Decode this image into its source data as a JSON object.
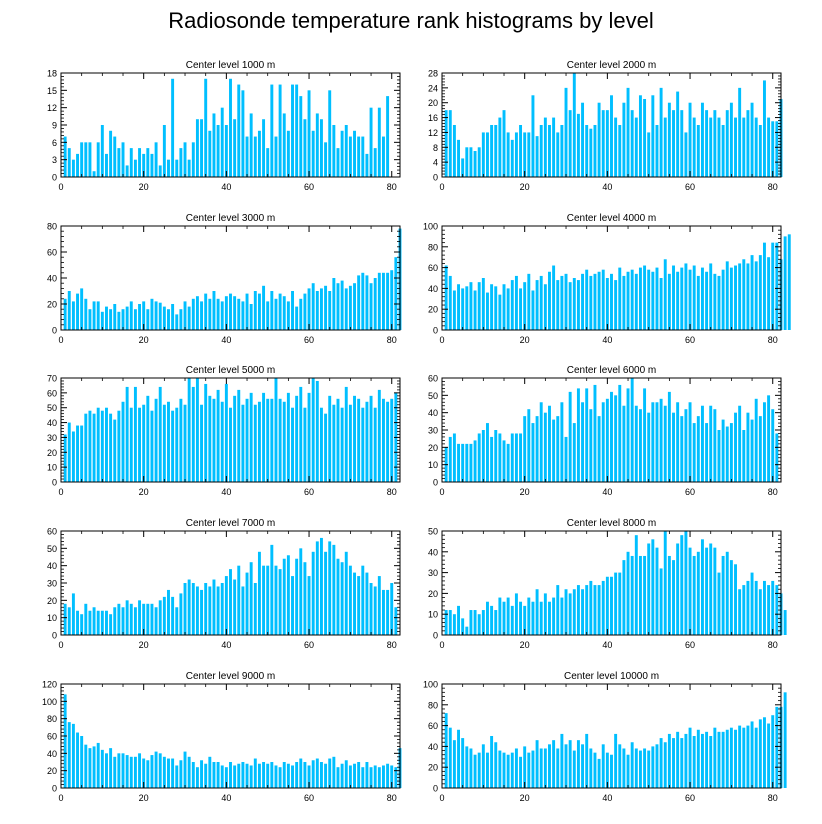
{
  "title": "Radiosonde temperature rank histograms by level",
  "bar_color": "#00bfff",
  "chart_data": [
    {
      "type": "bar",
      "title": "Center level 1000 m",
      "xlim": [
        0,
        82
      ],
      "xticks": [
        0,
        20,
        40,
        60,
        80
      ],
      "ylim": [
        0,
        18
      ],
      "yticks": [
        0,
        3,
        6,
        9,
        12,
        15,
        18
      ],
      "values": [
        7,
        5,
        3,
        4,
        6,
        6,
        6,
        1,
        6,
        9,
        4,
        8,
        7,
        5,
        6,
        2,
        5,
        3,
        5,
        4,
        5,
        4,
        6,
        2,
        9,
        3,
        17,
        3,
        5,
        6,
        3,
        6,
        10,
        10,
        17,
        8,
        11,
        9,
        12,
        9,
        17,
        10,
        16,
        15,
        7,
        11,
        7,
        8,
        10,
        5,
        16,
        7,
        16,
        11,
        8,
        16,
        16,
        14,
        10,
        15,
        8,
        11,
        10,
        6,
        15,
        9,
        5,
        8,
        9,
        7,
        8,
        7,
        7,
        4,
        12,
        5,
        12,
        7,
        14
      ]
    },
    {
      "type": "bar",
      "title": "Center level 2000 m",
      "xlim": [
        0,
        82
      ],
      "xticks": [
        0,
        20,
        40,
        60,
        80
      ],
      "ylim": [
        0,
        28
      ],
      "yticks": [
        0,
        4,
        8,
        12,
        16,
        20,
        24,
        28
      ],
      "values": [
        18,
        18,
        14,
        10,
        5,
        8,
        8,
        7,
        8,
        12,
        12,
        14,
        14,
        16,
        18,
        12,
        10,
        12,
        14,
        12,
        12,
        22,
        11,
        14,
        16,
        14,
        16,
        12,
        14,
        24,
        18,
        28,
        17,
        20,
        14,
        13,
        14,
        20,
        18,
        18,
        22,
        16,
        14,
        20,
        24,
        18,
        16,
        22,
        21,
        12,
        22,
        14,
        24,
        16,
        20,
        18,
        23,
        18,
        12,
        20,
        16,
        14,
        20,
        18,
        16,
        18,
        16,
        14,
        18,
        20,
        16,
        24,
        16,
        18,
        20,
        16,
        14,
        26,
        16,
        15,
        15,
        21
      ]
    },
    {
      "type": "bar",
      "title": "Center level 3000 m",
      "xlim": [
        0,
        82
      ],
      "xticks": [
        0,
        20,
        40,
        60,
        80
      ],
      "ylim": [
        0,
        80
      ],
      "yticks": [
        0,
        20,
        40,
        60,
        80
      ],
      "values": [
        24,
        30,
        22,
        28,
        32,
        24,
        16,
        22,
        22,
        14,
        18,
        16,
        20,
        14,
        16,
        18,
        22,
        16,
        20,
        22,
        16,
        24,
        22,
        21,
        18,
        16,
        20,
        12,
        16,
        22,
        18,
        24,
        26,
        22,
        28,
        24,
        30,
        24,
        22,
        26,
        28,
        26,
        24,
        22,
        28,
        20,
        30,
        28,
        34,
        22,
        30,
        24,
        28,
        26,
        22,
        30,
        18,
        24,
        28,
        32,
        36,
        30,
        32,
        34,
        30,
        40,
        36,
        38,
        32,
        34,
        36,
        42,
        44,
        42,
        36,
        40,
        44,
        44,
        44,
        46,
        56,
        78
      ]
    },
    {
      "type": "bar",
      "title": "Center level 4000 m",
      "xlim": [
        0,
        82
      ],
      "xticks": [
        0,
        20,
        40,
        60,
        80
      ],
      "ylim": [
        0,
        100
      ],
      "yticks": [
        0,
        20,
        40,
        60,
        80,
        100
      ],
      "values": [
        62,
        52,
        38,
        44,
        40,
        42,
        46,
        38,
        46,
        50,
        36,
        44,
        42,
        34,
        44,
        40,
        48,
        52,
        40,
        46,
        54,
        38,
        48,
        52,
        44,
        56,
        62,
        48,
        52,
        54,
        46,
        50,
        48,
        54,
        58,
        52,
        54,
        56,
        58,
        50,
        54,
        48,
        60,
        52,
        56,
        58,
        54,
        60,
        62,
        58,
        56,
        60,
        50,
        68,
        54,
        62,
        56,
        60,
        64,
        58,
        62,
        52,
        60,
        56,
        64,
        54,
        52,
        58,
        66,
        60,
        62,
        64,
        68,
        64,
        72,
        66,
        72,
        84,
        70,
        84,
        84,
        68,
        90,
        92
      ]
    },
    {
      "type": "bar",
      "title": "Center level 5000 m",
      "xlim": [
        0,
        82
      ],
      "xticks": [
        0,
        20,
        40,
        60,
        80
      ],
      "ylim": [
        0,
        70
      ],
      "yticks": [
        0,
        10,
        20,
        30,
        40,
        50,
        60,
        70
      ],
      "values": [
        32,
        40,
        34,
        38,
        38,
        46,
        48,
        46,
        50,
        48,
        50,
        46,
        42,
        48,
        54,
        64,
        50,
        64,
        50,
        52,
        58,
        48,
        56,
        64,
        52,
        54,
        48,
        50,
        56,
        52,
        70,
        64,
        70,
        52,
        66,
        58,
        56,
        62,
        54,
        66,
        50,
        58,
        62,
        52,
        56,
        60,
        52,
        54,
        60,
        56,
        56,
        70,
        56,
        54,
        60,
        50,
        58,
        64,
        50,
        60,
        70,
        68,
        50,
        46,
        58,
        52,
        56,
        50,
        64,
        52,
        58,
        56,
        50,
        54,
        58,
        50,
        62,
        56,
        54,
        56,
        60
      ]
    },
    {
      "type": "bar",
      "title": "Center level 6000 m",
      "xlim": [
        0,
        82
      ],
      "xticks": [
        0,
        20,
        40,
        60,
        80
      ],
      "ylim": [
        0,
        60
      ],
      "yticks": [
        0,
        10,
        20,
        30,
        40,
        50,
        60
      ],
      "values": [
        20,
        26,
        28,
        22,
        22,
        22,
        22,
        24,
        28,
        30,
        34,
        26,
        30,
        28,
        24,
        22,
        28,
        28,
        28,
        38,
        42,
        34,
        38,
        46,
        40,
        44,
        36,
        38,
        46,
        26,
        52,
        34,
        54,
        46,
        54,
        42,
        56,
        38,
        46,
        48,
        52,
        50,
        56,
        44,
        54,
        60,
        44,
        42,
        54,
        40,
        46,
        46,
        48,
        44,
        52,
        40,
        46,
        38,
        42,
        46,
        34,
        38,
        44,
        34,
        44,
        42,
        30,
        36,
        32,
        34,
        40,
        44,
        30,
        40,
        36,
        48,
        38,
        46,
        50,
        42,
        28
      ]
    },
    {
      "type": "bar",
      "title": "Center level 7000 m",
      "xlim": [
        0,
        82
      ],
      "xticks": [
        0,
        20,
        40,
        60,
        80
      ],
      "ylim": [
        0,
        60
      ],
      "yticks": [
        0,
        10,
        20,
        30,
        40,
        50,
        60
      ],
      "values": [
        18,
        16,
        24,
        14,
        12,
        18,
        14,
        16,
        14,
        14,
        14,
        12,
        16,
        18,
        16,
        20,
        18,
        16,
        20,
        18,
        18,
        18,
        16,
        20,
        22,
        26,
        22,
        16,
        24,
        30,
        32,
        30,
        28,
        26,
        30,
        28,
        32,
        28,
        30,
        34,
        38,
        32,
        40,
        28,
        36,
        42,
        30,
        48,
        40,
        40,
        52,
        40,
        38,
        44,
        46,
        34,
        44,
        50,
        42,
        34,
        48,
        54,
        56,
        48,
        54,
        52,
        44,
        42,
        48,
        40,
        36,
        34,
        40,
        36,
        30,
        28,
        34,
        26,
        26,
        30,
        16
      ]
    },
    {
      "type": "bar",
      "title": "Center level 8000 m",
      "xlim": [
        0,
        82
      ],
      "xticks": [
        0,
        20,
        40,
        60,
        80
      ],
      "ylim": [
        0,
        50
      ],
      "yticks": [
        0,
        10,
        20,
        30,
        40,
        50
      ],
      "values": [
        12,
        12,
        10,
        14,
        8,
        4,
        12,
        12,
        10,
        12,
        16,
        14,
        12,
        18,
        16,
        18,
        14,
        20,
        16,
        14,
        18,
        16,
        22,
        16,
        20,
        16,
        18,
        24,
        18,
        22,
        20,
        22,
        24,
        22,
        24,
        26,
        24,
        24,
        26,
        28,
        28,
        30,
        30,
        36,
        40,
        38,
        48,
        38,
        38,
        44,
        46,
        42,
        32,
        50,
        38,
        36,
        44,
        48,
        50,
        42,
        38,
        40,
        46,
        42,
        44,
        42,
        30,
        38,
        40,
        36,
        34,
        22,
        24,
        26,
        30,
        26,
        22,
        26,
        24,
        26,
        24,
        20,
        12
      ]
    },
    {
      "type": "bar",
      "title": "Center level 9000 m",
      "xlim": [
        0,
        82
      ],
      "xticks": [
        0,
        20,
        40,
        60,
        80
      ],
      "ylim": [
        0,
        120
      ],
      "yticks": [
        0,
        20,
        40,
        60,
        80,
        100,
        120
      ],
      "values": [
        108,
        76,
        74,
        64,
        60,
        50,
        46,
        48,
        52,
        44,
        40,
        46,
        36,
        40,
        40,
        38,
        36,
        36,
        40,
        34,
        32,
        38,
        42,
        40,
        36,
        34,
        34,
        26,
        32,
        42,
        36,
        30,
        24,
        32,
        28,
        36,
        30,
        30,
        26,
        24,
        30,
        26,
        28,
        30,
        28,
        26,
        34,
        28,
        30,
        28,
        30,
        26,
        24,
        30,
        28,
        26,
        30,
        34,
        30,
        26,
        32,
        34,
        30,
        28,
        34,
        36,
        24,
        28,
        32,
        26,
        28,
        30,
        24,
        30,
        24,
        26,
        24,
        26,
        28,
        26,
        24,
        46
      ]
    },
    {
      "type": "bar",
      "title": "Center level 10000 m",
      "xlim": [
        0,
        82
      ],
      "xticks": [
        0,
        20,
        40,
        60,
        80
      ],
      "ylim": [
        0,
        100
      ],
      "yticks": [
        0,
        20,
        40,
        60,
        80,
        100
      ],
      "values": [
        72,
        58,
        46,
        56,
        48,
        40,
        38,
        32,
        34,
        42,
        34,
        50,
        44,
        36,
        34,
        32,
        34,
        38,
        30,
        40,
        34,
        36,
        46,
        38,
        38,
        42,
        46,
        38,
        52,
        42,
        46,
        36,
        46,
        42,
        52,
        38,
        34,
        28,
        42,
        34,
        32,
        52,
        42,
        38,
        32,
        44,
        38,
        36,
        38,
        36,
        40,
        42,
        48,
        44,
        52,
        48,
        54,
        48,
        52,
        58,
        50,
        56,
        52,
        54,
        50,
        58,
        54,
        54,
        56,
        58,
        56,
        60,
        58,
        60,
        64,
        58,
        66,
        68,
        62,
        70,
        78,
        78,
        92
      ]
    }
  ]
}
